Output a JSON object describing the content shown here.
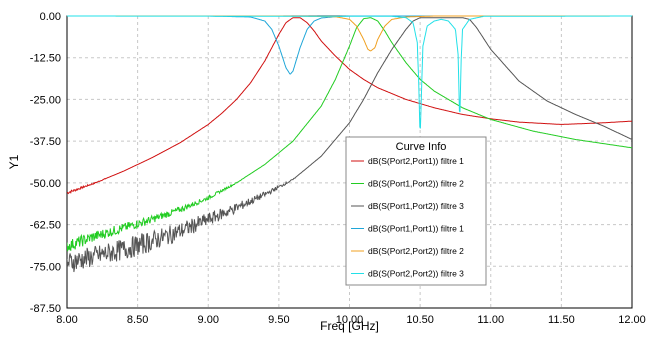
{
  "chart_data": {
    "type": "line",
    "xlabel": "Freq [GHz]",
    "ylabel": "Y1",
    "xlim": [
      8.0,
      12.0
    ],
    "ylim": [
      -87.5,
      0.0
    ],
    "x_ticks": [
      "8.00",
      "8.50",
      "9.00",
      "9.50",
      "10.00",
      "10.50",
      "11.00",
      "11.50",
      "12.00"
    ],
    "y_ticks": [
      "0.00",
      "-12.50",
      "-25.00",
      "-37.50",
      "-50.00",
      "-62.50",
      "-75.00",
      "-87.50"
    ],
    "grid": true,
    "legend": {
      "title": "Curve Info",
      "position": "center-right"
    },
    "series": [
      {
        "name": "dB(S(Port2,Port1)) filtre 1",
        "color": "#d01010",
        "x": [
          8.0,
          8.2,
          8.4,
          8.6,
          8.8,
          9.0,
          9.1,
          9.2,
          9.3,
          9.4,
          9.45,
          9.5,
          9.55,
          9.6,
          9.65,
          9.7,
          9.75,
          9.8,
          9.9,
          10.0,
          10.1,
          10.2,
          10.4,
          10.6,
          10.8,
          11.0,
          11.2,
          11.5,
          11.8,
          12.0
        ],
        "y": [
          -53.0,
          -50.0,
          -46.5,
          -42.5,
          -38.0,
          -32.5,
          -29.0,
          -25.0,
          -20.0,
          -13.5,
          -9.5,
          -5.5,
          -2.0,
          -0.5,
          -0.5,
          -2.0,
          -4.5,
          -7.5,
          -12.0,
          -16.0,
          -19.0,
          -21.5,
          -25.0,
          -27.5,
          -29.5,
          -30.8,
          -31.8,
          -32.5,
          -32.0,
          -31.5
        ]
      },
      {
        "name": "dB(S(Port1,Port2))  filtre 2",
        "color": "#22cc22",
        "x": [
          8.0,
          8.2,
          8.4,
          8.6,
          8.8,
          9.0,
          9.2,
          9.4,
          9.6,
          9.8,
          9.9,
          10.0,
          10.05,
          10.1,
          10.15,
          10.2,
          10.25,
          10.3,
          10.4,
          10.5,
          10.6,
          10.8,
          11.0,
          11.3,
          11.6,
          12.0
        ],
        "y": [
          -69.0,
          -66.0,
          -63.5,
          -61.0,
          -58.0,
          -54.5,
          -50.0,
          -44.5,
          -37.5,
          -27.0,
          -19.0,
          -9.0,
          -3.5,
          -0.8,
          -0.5,
          -1.5,
          -4.5,
          -8.0,
          -14.0,
          -19.0,
          -22.5,
          -27.5,
          -31.0,
          -34.5,
          -37.0,
          -39.5
        ]
      },
      {
        "name": "dB(S(Port1,Port2))  filtre 3",
        "color": "#555555",
        "x": [
          8.0,
          8.2,
          8.4,
          8.6,
          8.8,
          9.0,
          9.2,
          9.4,
          9.6,
          9.8,
          10.0,
          10.1,
          10.2,
          10.3,
          10.4,
          10.45,
          10.5,
          10.55,
          10.6,
          10.7,
          10.8,
          10.85,
          10.9,
          11.0,
          11.2,
          11.4,
          11.6,
          11.8,
          12.0
        ],
        "y": [
          -74.0,
          -72.0,
          -70.0,
          -67.5,
          -64.5,
          -61.0,
          -57.5,
          -53.5,
          -49.0,
          -42.0,
          -32.0,
          -25.0,
          -17.0,
          -10.0,
          -4.0,
          -1.5,
          -0.5,
          -0.5,
          -0.5,
          -0.5,
          -0.5,
          -1.0,
          -3.5,
          -10.0,
          -19.5,
          -25.5,
          -29.5,
          -33.0,
          -37.0
        ]
      },
      {
        "name": "dB(S(Port1,Port1)) filtre 1",
        "color": "#1fa6d8",
        "x": [
          8.0,
          9.0,
          9.3,
          9.4,
          9.45,
          9.5,
          9.55,
          9.58,
          9.6,
          9.65,
          9.7,
          9.75,
          9.8,
          9.9,
          10.0,
          11.0,
          12.0
        ],
        "y": [
          0.0,
          0.0,
          -0.3,
          -1.5,
          -4.0,
          -9.0,
          -15.5,
          -17.5,
          -16.5,
          -9.5,
          -4.0,
          -1.5,
          -0.6,
          -0.2,
          0.0,
          0.0,
          0.0
        ]
      },
      {
        "name": "dB(S(Port2,Port2)) filtre 2",
        "color": "#f0a020",
        "x": [
          8.0,
          9.5,
          9.9,
          10.0,
          10.05,
          10.1,
          10.13,
          10.15,
          10.18,
          10.2,
          10.25,
          10.3,
          10.4,
          10.6,
          10.9,
          11.0,
          12.0
        ],
        "y": [
          0.0,
          0.0,
          -0.2,
          -1.0,
          -3.0,
          -7.0,
          -10.0,
          -10.5,
          -9.5,
          -7.0,
          -3.0,
          -1.0,
          -0.3,
          0.0,
          0.0,
          0.0,
          0.0
        ]
      },
      {
        "name": "dB(S(Port2,Port2))  filtre 3",
        "color": "#22e0e8",
        "x": [
          8.0,
          10.3,
          10.4,
          10.45,
          10.48,
          10.49,
          10.5,
          10.51,
          10.52,
          10.55,
          10.6,
          10.65,
          10.7,
          10.75,
          10.77,
          10.78,
          10.79,
          10.8,
          10.85,
          10.95,
          12.0
        ],
        "y": [
          0.0,
          -0.1,
          -0.5,
          -2.0,
          -8.0,
          -20.0,
          -37.0,
          -22.0,
          -9.0,
          -3.0,
          -1.5,
          -1.0,
          -1.5,
          -4.0,
          -12.0,
          -33.0,
          -14.0,
          -4.0,
          -1.0,
          -0.1,
          0.0
        ]
      }
    ]
  }
}
